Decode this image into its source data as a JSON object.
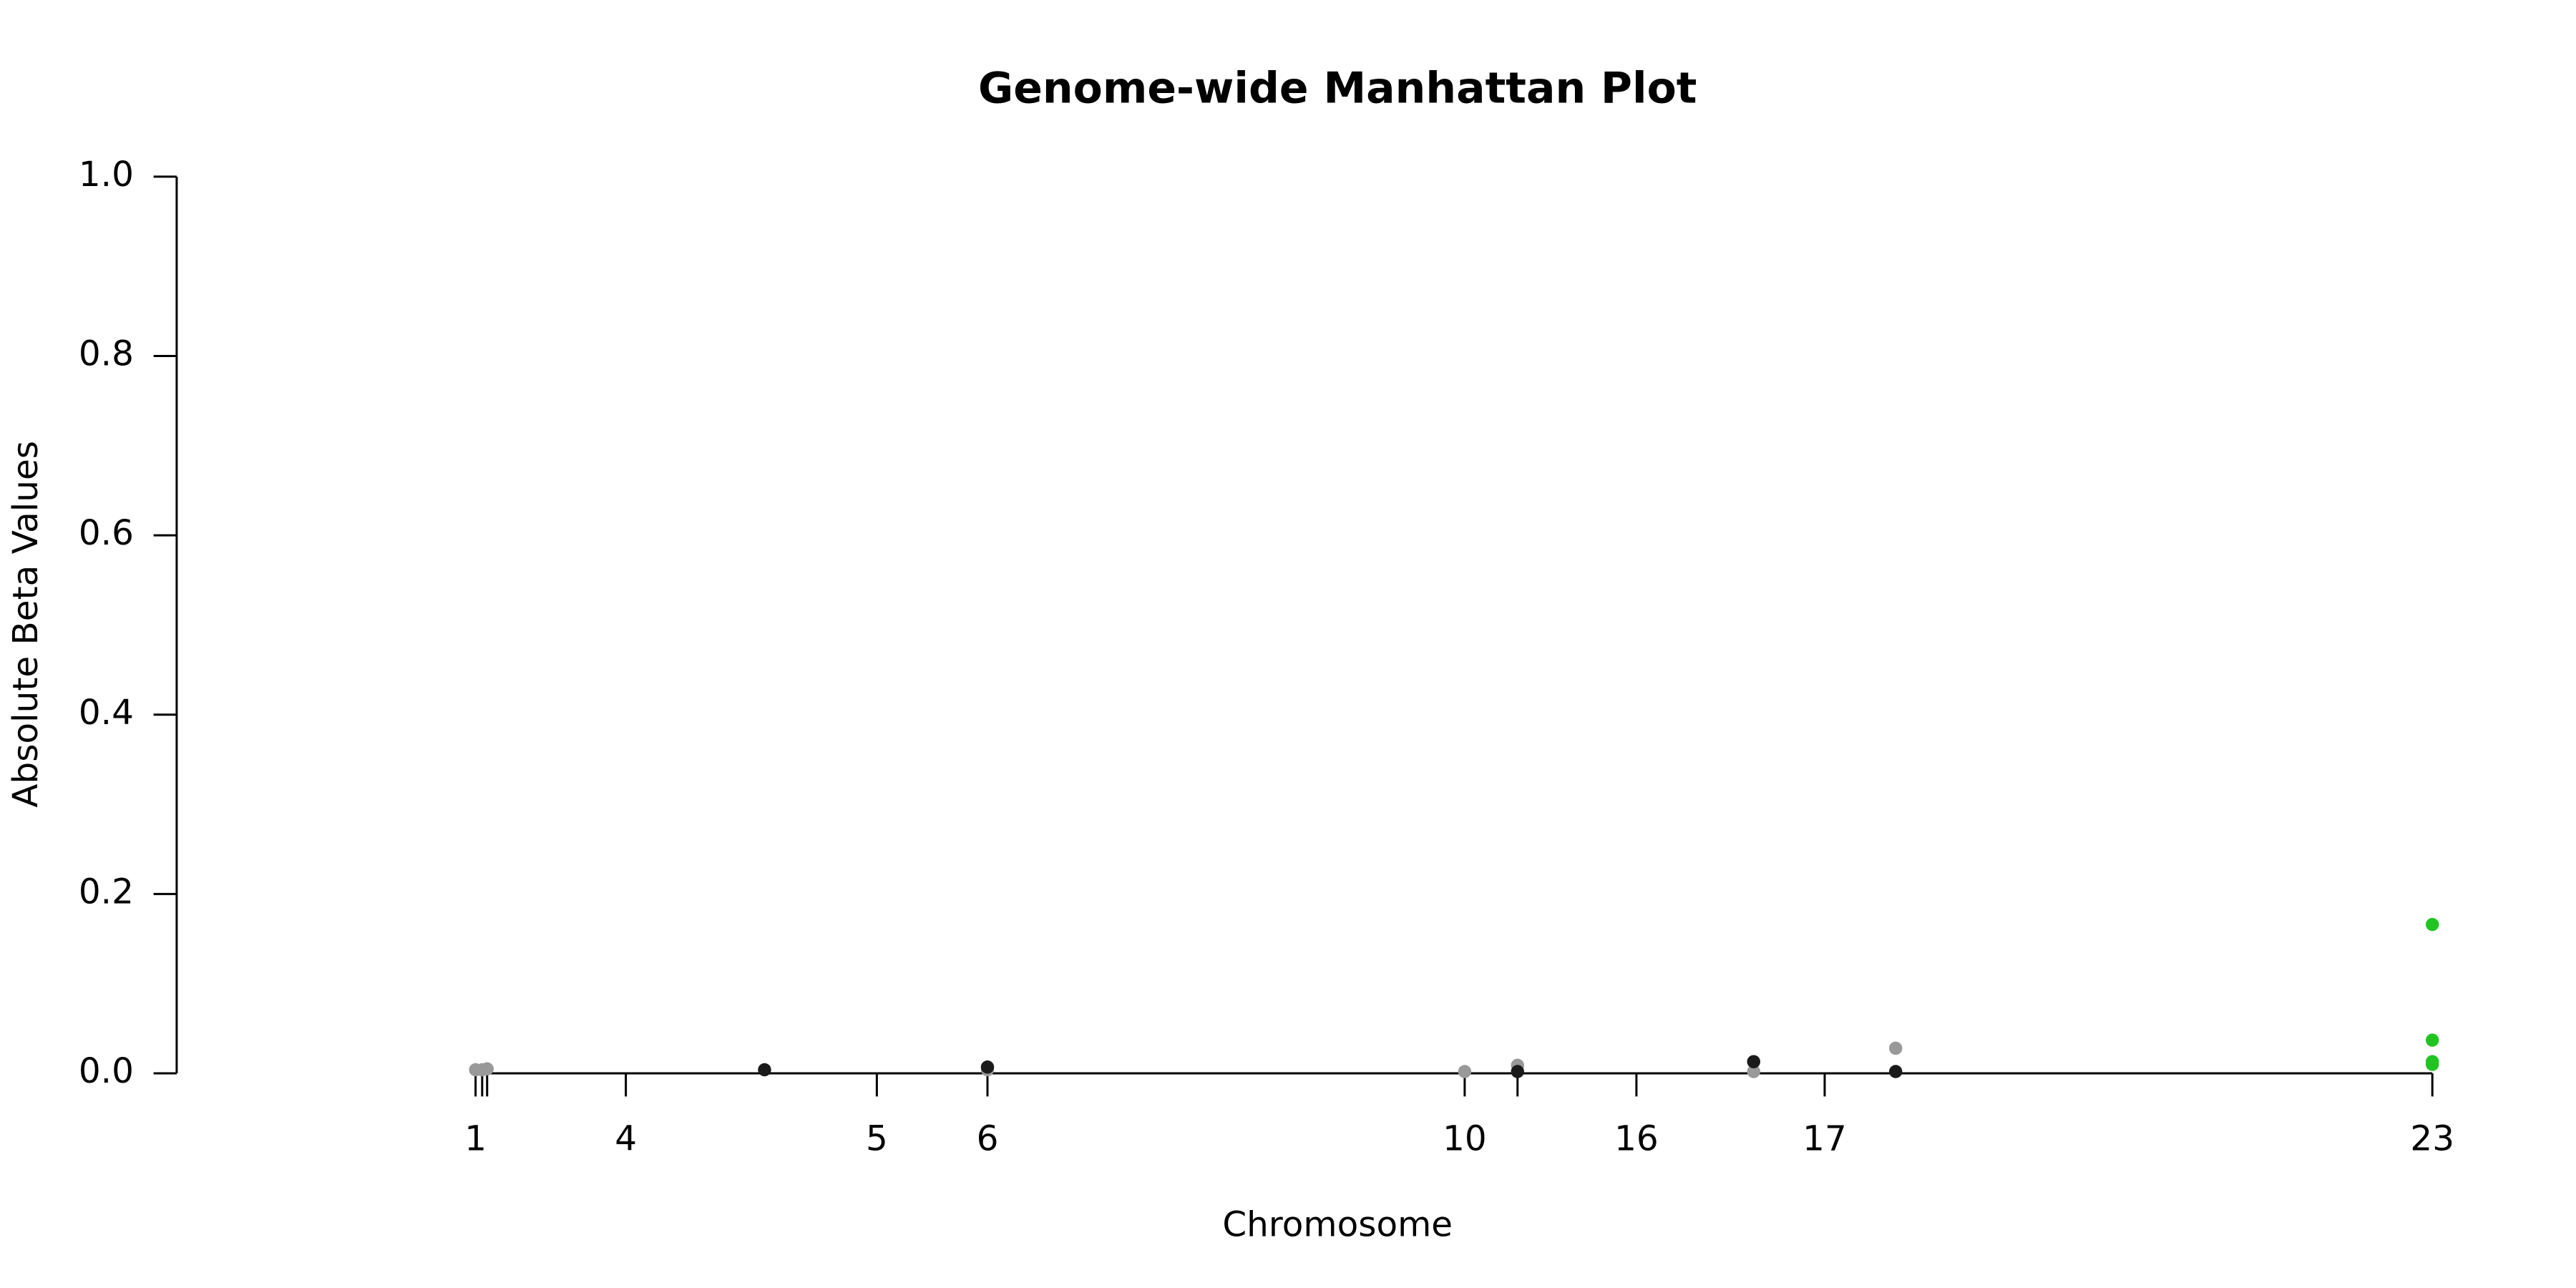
{
  "chart_data": {
    "type": "scatter",
    "title": "Genome-wide Manhattan Plot",
    "x_label": "Chromosome",
    "y_label": "Absolute Beta Values",
    "xlim": [
      0,
      1413
    ],
    "ylim": [
      0,
      1
    ],
    "xticks": [
      {
        "value": 181,
        "label": "1"
      },
      {
        "value": 185,
        "label": null
      },
      {
        "value": 188,
        "label": null
      },
      {
        "value": 272,
        "label": "4"
      },
      {
        "value": 424,
        "label": "5"
      },
      {
        "value": 491,
        "label": "6"
      },
      {
        "value": 780,
        "label": "10"
      },
      {
        "value": 812,
        "label": null
      },
      {
        "value": 884,
        "label": "16"
      },
      {
        "value": 998,
        "label": "17"
      },
      {
        "value": 1366,
        "label": "23"
      }
    ],
    "yticks": [
      {
        "value": 0,
        "label": "0.0"
      },
      0.2,
      0.4,
      0.6,
      0.8,
      {
        "value": 1,
        "label": "1.0"
      }
    ],
    "series": [
      {
        "color": "#999999",
        "x": [
          181,
          185,
          188,
          491,
          780,
          812,
          955,
          1041
        ],
        "values": [
          0.004,
          0.004,
          0.005,
          0.004,
          0.002,
          0.009,
          0.002,
          0.028
        ]
      },
      {
        "color": "#1a1a1a",
        "x": [
          356,
          491,
          812,
          955,
          1041
        ],
        "values": [
          0.004,
          0.007,
          0.002,
          0.013,
          0.002
        ]
      },
      {
        "color": "#22c422",
        "x": [
          1366,
          1366,
          1366,
          1366
        ],
        "values": [
          0.166,
          0.037,
          0.013,
          0.01
        ]
      }
    ]
  }
}
